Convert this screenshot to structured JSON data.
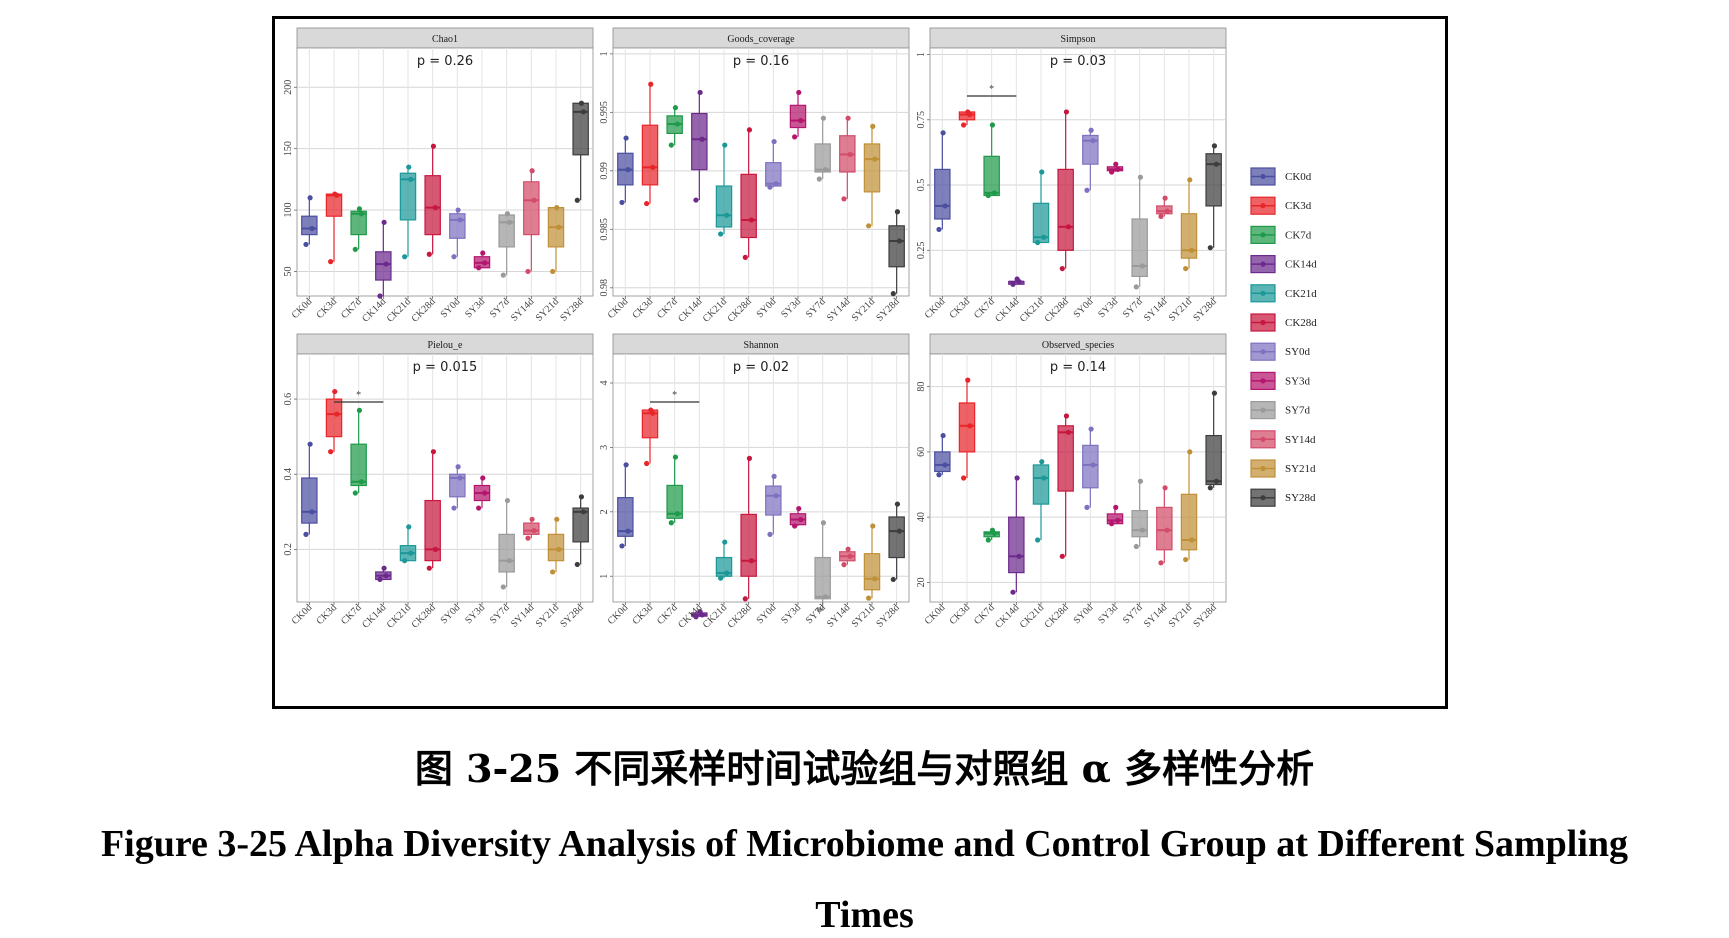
{
  "caption": {
    "cn": "图 3-25 不同采样时间试验组与对照组 α 多样性分析",
    "en_line1": "Figure 3-25 Alpha Diversity Analysis of Microbiome and Control Group at Different Sampling",
    "en_line2": "Times"
  },
  "colors": {
    "CK0d": "#4B4FA0",
    "CK3d": "#E8262A",
    "CK7d": "#1F9A4A",
    "CK14d": "#6B2A8C",
    "CK21d": "#1C9898",
    "CK28d": "#C8173E",
    "SY0d": "#7E72C0",
    "SY3d": "#B4166E",
    "SY7d": "#9A9A9A",
    "SY14d": "#D24C6A",
    "SY21d": "#C09038",
    "SY28d": "#3D3D3D"
  },
  "chart_data": [
    {
      "type": "box",
      "title": "Chao1",
      "pvalue": "p = 0.26",
      "categories": [
        "CK0d",
        "CK3d",
        "CK7d",
        "CK14d",
        "CK21d",
        "CK28d",
        "SY0d",
        "SY3d",
        "SY7d",
        "SY14d",
        "SY21d",
        "SY28d"
      ],
      "ylim": [
        30,
        232
      ],
      "yticks": [
        50,
        100,
        150,
        200
      ],
      "boxes": [
        [
          72,
          80,
          85,
          95,
          110
        ],
        [
          58,
          95,
          112,
          113,
          113
        ],
        [
          68,
          80,
          97,
          99,
          101
        ],
        [
          30,
          43,
          56,
          66,
          90
        ],
        [
          62,
          92,
          125,
          130,
          135
        ],
        [
          64,
          80,
          102,
          128,
          152
        ],
        [
          62,
          77,
          92,
          97,
          100
        ],
        [
          53,
          53,
          57,
          62,
          65
        ],
        [
          47,
          70,
          90,
          96,
          97
        ],
        [
          50,
          80,
          108,
          123,
          132
        ],
        [
          50,
          70,
          86,
          102,
          102
        ],
        [
          108,
          145,
          180,
          187,
          187
        ]
      ],
      "significance": null
    },
    {
      "type": "box",
      "title": "Goods_coverage",
      "pvalue": "p = 0.16",
      "categories": [
        "CK0d",
        "CK3d",
        "CK7d",
        "CK14d",
        "CK21d",
        "CK28d",
        "SY0d",
        "SY3d",
        "SY7d",
        "SY14d",
        "SY21d",
        "SY28d"
      ],
      "ylim": [
        0.9793,
        1.0005
      ],
      "yticks": [
        0.98,
        0.985,
        0.99,
        0.995,
        1.0
      ],
      "boxes": [
        [
          0.9873,
          0.9888,
          0.9901,
          0.9915,
          0.9928
        ],
        [
          0.9872,
          0.9888,
          0.9903,
          0.9939,
          0.9974
        ],
        [
          0.9922,
          0.9932,
          0.994,
          0.9947,
          0.9954
        ],
        [
          0.9875,
          0.9901,
          0.9927,
          0.9949,
          0.9967
        ],
        [
          0.9846,
          0.9852,
          0.9862,
          0.9887,
          0.9922
        ],
        [
          0.9826,
          0.9843,
          0.9858,
          0.9897,
          0.9935
        ],
        [
          0.9886,
          0.9887,
          0.9889,
          0.9907,
          0.9925
        ],
        [
          0.9929,
          0.9937,
          0.9943,
          0.9956,
          0.9967
        ],
        [
          0.9893,
          0.9899,
          0.9901,
          0.9923,
          0.9945
        ],
        [
          0.9876,
          0.9899,
          0.9914,
          0.993,
          0.9945
        ],
        [
          0.9853,
          0.9882,
          0.991,
          0.9923,
          0.9938
        ],
        [
          0.9795,
          0.9818,
          0.984,
          0.9853,
          0.9865
        ]
      ],
      "significance": null
    },
    {
      "type": "box",
      "title": "Simpson",
      "pvalue": "p = 0.03",
      "categories": [
        "CK0d",
        "CK3d",
        "CK7d",
        "CK14d",
        "CK21d",
        "CK28d",
        "SY0d",
        "SY3d",
        "SY7d",
        "SY14d",
        "SY21d",
        "SY28d"
      ],
      "ylim": [
        0.075,
        1.025
      ],
      "yticks": [
        0.25,
        0.5,
        0.75,
        1.0
      ],
      "boxes": [
        [
          0.33,
          0.37,
          0.42,
          0.56,
          0.7
        ],
        [
          0.73,
          0.75,
          0.77,
          0.78,
          0.78
        ],
        [
          0.46,
          0.46,
          0.47,
          0.61,
          0.73
        ],
        [
          0.12,
          0.12,
          0.13,
          0.13,
          0.14
        ],
        [
          0.28,
          0.28,
          0.3,
          0.43,
          0.55
        ],
        [
          0.18,
          0.25,
          0.34,
          0.56,
          0.78
        ],
        [
          0.48,
          0.58,
          0.67,
          0.69,
          0.71
        ],
        [
          0.55,
          0.555,
          0.56,
          0.57,
          0.58
        ],
        [
          0.11,
          0.15,
          0.19,
          0.37,
          0.53
        ],
        [
          0.38,
          0.39,
          0.4,
          0.42,
          0.45
        ],
        [
          0.18,
          0.22,
          0.25,
          0.39,
          0.52
        ],
        [
          0.26,
          0.42,
          0.58,
          0.62,
          0.65
        ]
      ],
      "significance": {
        "from": 1,
        "to": 3,
        "label": "*"
      }
    },
    {
      "type": "box",
      "title": "Pielou_e",
      "pvalue": "p = 0.015",
      "categories": [
        "CK0d",
        "CK3d",
        "CK7d",
        "CK14d",
        "CK21d",
        "CK28d",
        "SY0d",
        "SY3d",
        "SY7d",
        "SY14d",
        "SY21d",
        "SY28d"
      ],
      "ylim": [
        0.06,
        0.72
      ],
      "yticks": [
        0.2,
        0.4,
        0.6
      ],
      "boxes": [
        [
          0.24,
          0.27,
          0.3,
          0.39,
          0.48
        ],
        [
          0.46,
          0.5,
          0.56,
          0.6,
          0.62
        ],
        [
          0.35,
          0.37,
          0.38,
          0.48,
          0.57
        ],
        [
          0.12,
          0.12,
          0.13,
          0.14,
          0.15
        ],
        [
          0.17,
          0.17,
          0.19,
          0.21,
          0.26
        ],
        [
          0.15,
          0.17,
          0.2,
          0.33,
          0.46
        ],
        [
          0.31,
          0.34,
          0.39,
          0.4,
          0.42
        ],
        [
          0.31,
          0.33,
          0.35,
          0.37,
          0.39
        ],
        [
          0.1,
          0.14,
          0.17,
          0.24,
          0.33
        ],
        [
          0.23,
          0.24,
          0.25,
          0.27,
          0.28
        ],
        [
          0.14,
          0.17,
          0.2,
          0.24,
          0.28
        ],
        [
          0.16,
          0.22,
          0.3,
          0.31,
          0.34
        ]
      ],
      "significance": {
        "from": 1,
        "to": 3,
        "label": "*"
      }
    },
    {
      "type": "box",
      "title": "Shannon",
      "pvalue": "p = 0.02",
      "categories": [
        "CK0d",
        "CK3d",
        "CK7d",
        "CK14d",
        "CK21d",
        "CK28d",
        "SY0d",
        "SY3d",
        "SY7d",
        "SY14d",
        "SY21d",
        "SY28d"
      ],
      "ylim": [
        0.6,
        4.45
      ],
      "yticks": [
        1,
        2,
        3,
        4
      ],
      "boxes": [
        [
          1.47,
          1.62,
          1.7,
          2.22,
          2.73
        ],
        [
          2.75,
          3.15,
          3.53,
          3.58,
          3.58
        ],
        [
          1.83,
          1.9,
          1.97,
          2.41,
          2.85
        ],
        [
          0.37,
          0.38,
          0.4,
          0.43,
          0.45
        ],
        [
          0.97,
          1.0,
          1.05,
          1.29,
          1.53
        ],
        [
          0.65,
          1.0,
          1.24,
          1.96,
          2.83
        ],
        [
          1.65,
          1.95,
          2.25,
          2.4,
          2.55
        ],
        [
          1.78,
          1.8,
          1.88,
          1.97,
          2.05
        ],
        [
          0.48,
          0.65,
          0.68,
          1.29,
          1.83
        ],
        [
          1.18,
          1.24,
          1.31,
          1.38,
          1.42
        ],
        [
          0.66,
          0.79,
          0.96,
          1.35,
          1.78
        ],
        [
          0.95,
          1.29,
          1.7,
          1.92,
          2.12
        ]
      ],
      "significance": {
        "from": 1,
        "to": 3,
        "label": "*"
      }
    },
    {
      "type": "box",
      "title": "Observed_species",
      "pvalue": "p = 0.14",
      "categories": [
        "CK0d",
        "CK3d",
        "CK7d",
        "CK14d",
        "CK21d",
        "CK28d",
        "SY0d",
        "SY3d",
        "SY7d",
        "SY14d",
        "SY21d",
        "SY28d"
      ],
      "ylim": [
        14,
        90
      ],
      "yticks": [
        20,
        40,
        60,
        80
      ],
      "boxes": [
        [
          53,
          54,
          56,
          60,
          65
        ],
        [
          52,
          60,
          68,
          75,
          82
        ],
        [
          33,
          34,
          35,
          35.5,
          36
        ],
        [
          17,
          23,
          28,
          40,
          52
        ],
        [
          33,
          44,
          52,
          56,
          57
        ],
        [
          28,
          48,
          66,
          68,
          71
        ],
        [
          43,
          49,
          56,
          62,
          67
        ],
        [
          38,
          38,
          39,
          41,
          43
        ],
        [
          31,
          34,
          36,
          42,
          51
        ],
        [
          26,
          30,
          36,
          43,
          49
        ],
        [
          27,
          30,
          33,
          47,
          60
        ],
        [
          49,
          50,
          51,
          65,
          78
        ]
      ],
      "significance": null
    }
  ]
}
